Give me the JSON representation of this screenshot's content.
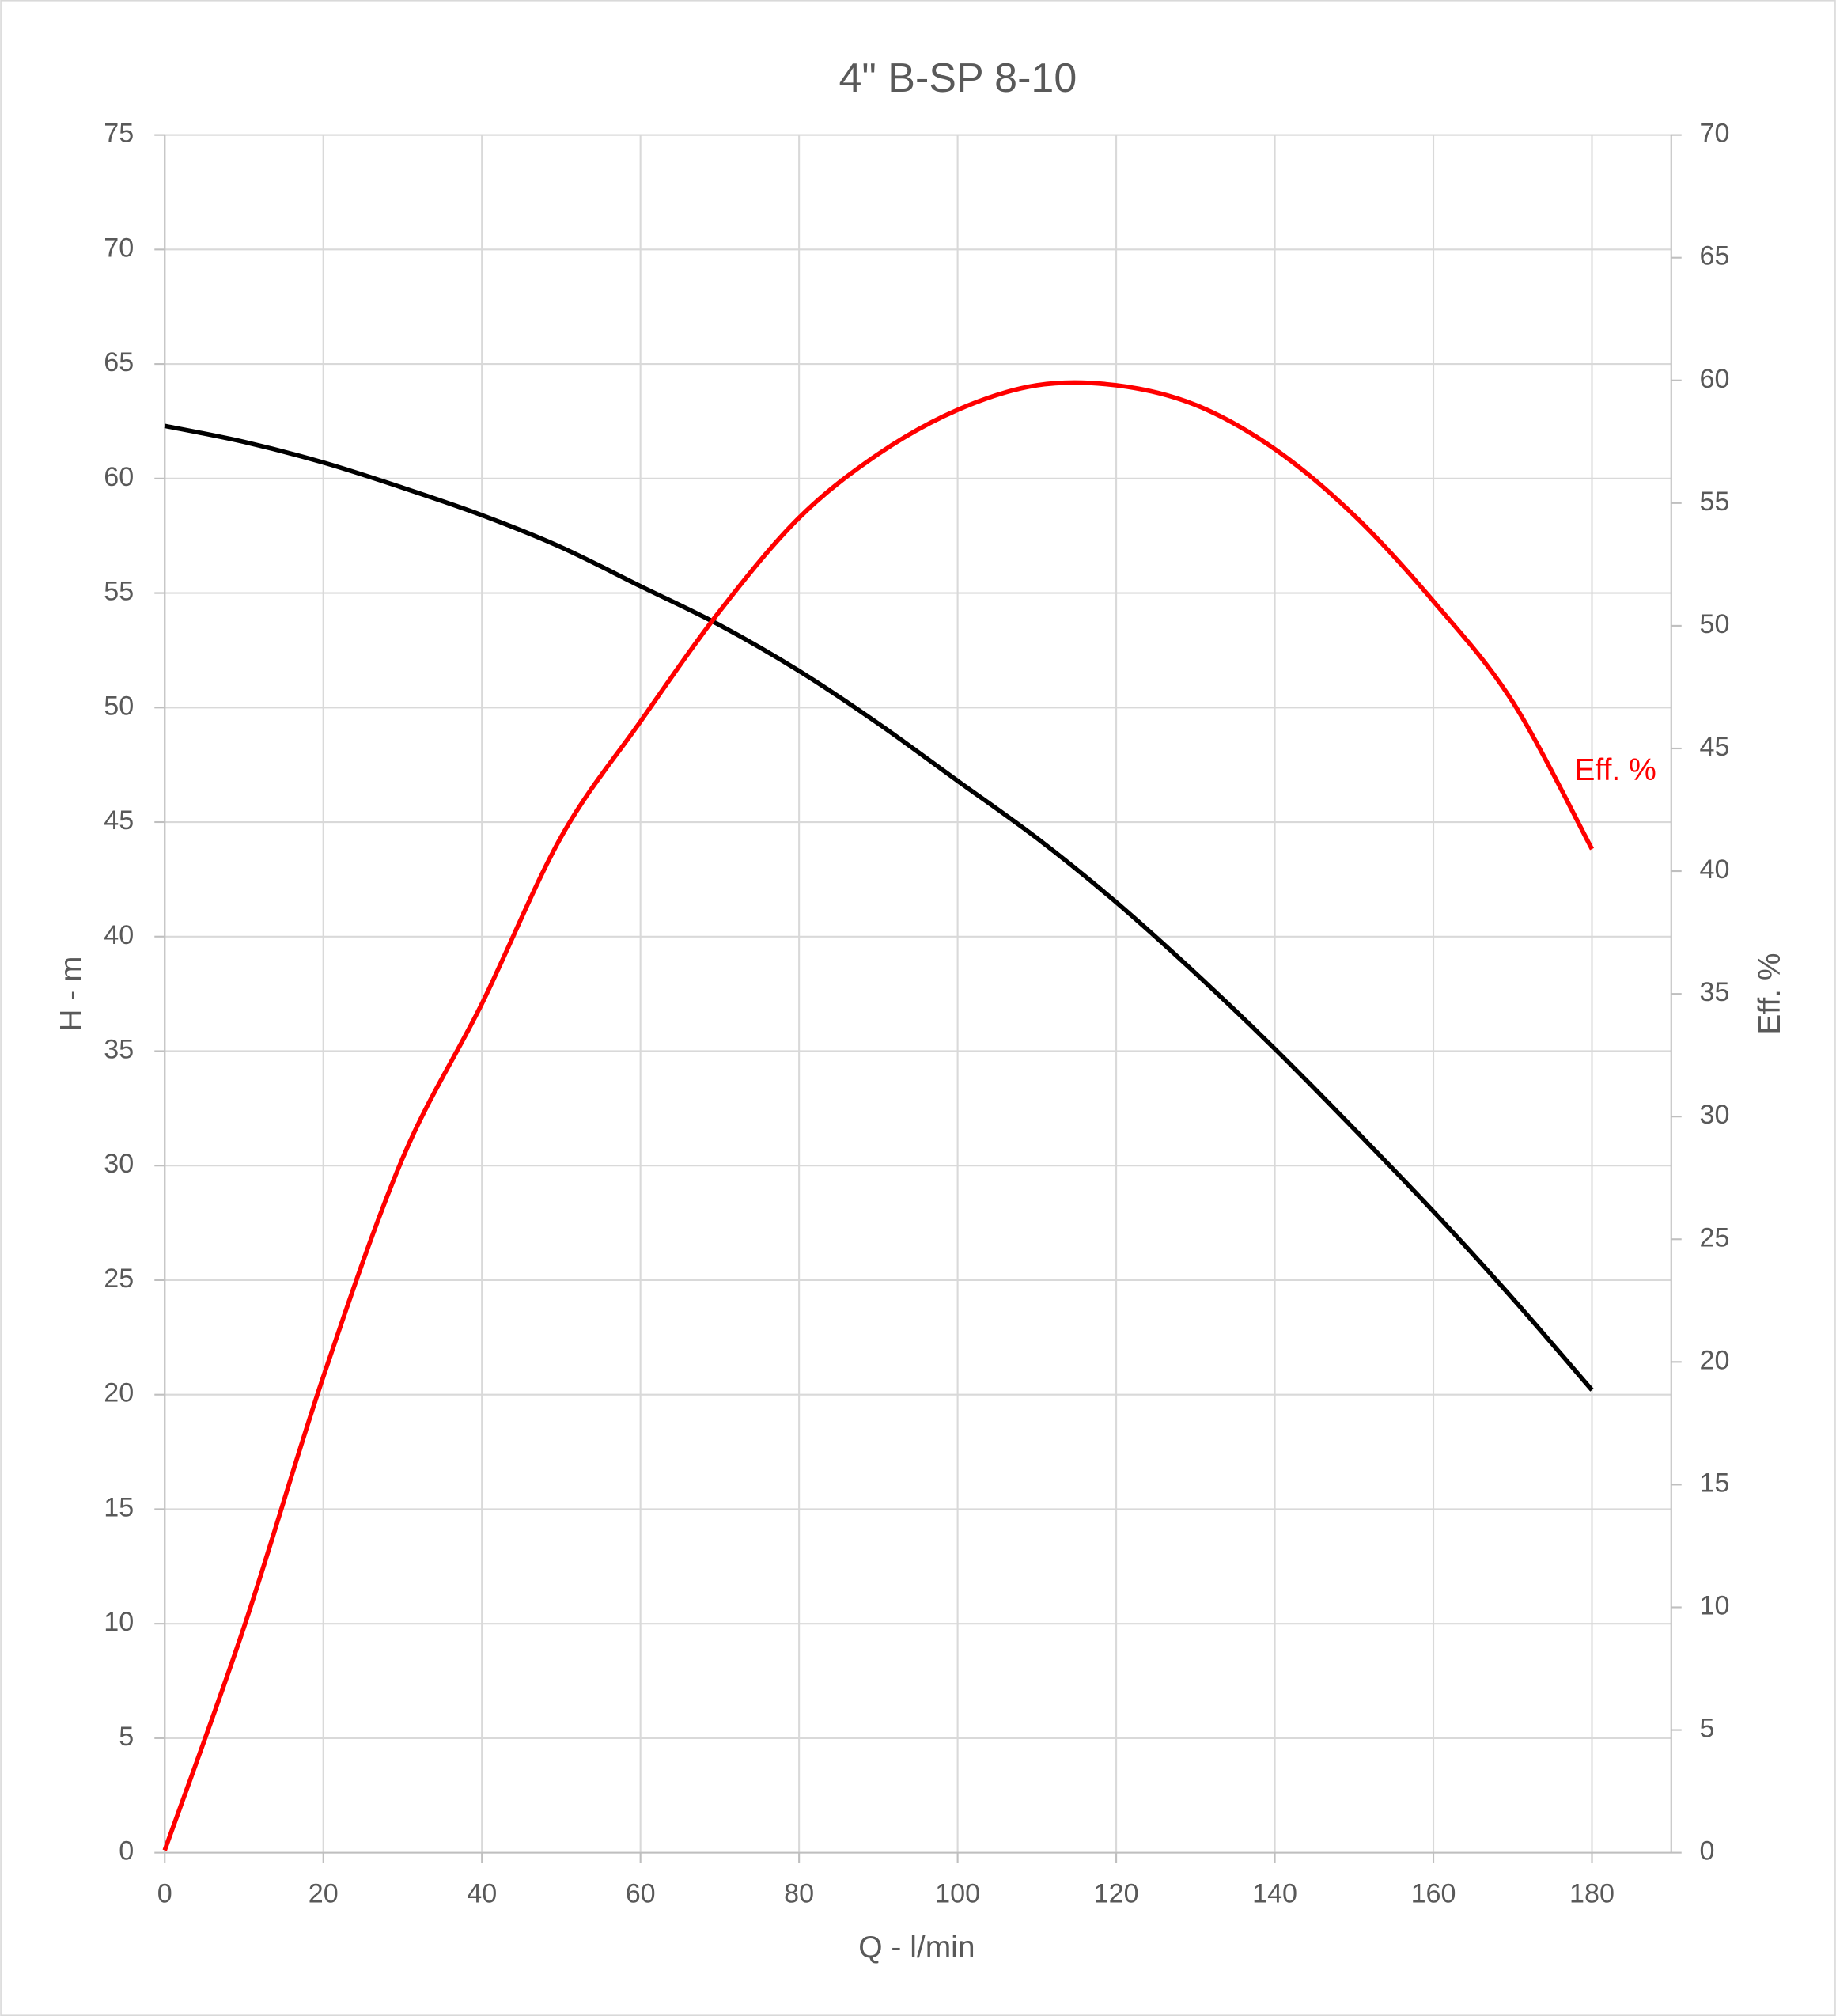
{
  "chart_data": {
    "type": "line",
    "title": "4\" B-SP 8-10",
    "x_label": "Q - l/min",
    "y_label": "H - m",
    "y2_label": "Eff. %",
    "x": [
      0,
      10,
      20,
      30,
      40,
      50,
      60,
      70,
      80,
      90,
      100,
      110,
      120,
      130,
      140,
      150,
      160,
      170,
      180
    ],
    "series": [
      {
        "color": "#000000",
        "values": [
          62.3,
          61.6,
          60.7,
          59.6,
          58.4,
          57.0,
          55.3,
          53.6,
          51.6,
          49.3,
          46.8,
          44.3,
          41.5,
          38.4,
          35.1,
          31.6,
          28.0,
          24.2,
          20.2
        ]
      },
      {
        "name": "Eff. %",
        "color": "#ff0000",
        "axis": "y2",
        "values": [
          0.1,
          9.2,
          19.4,
          28.3,
          34.6,
          41.4,
          46.1,
          50.6,
          54.4,
          57.0,
          58.8,
          59.8,
          59.8,
          59.0,
          57.2,
          54.5,
          51.0,
          46.9,
          40.9
        ]
      }
    ],
    "xlim": [
      0,
      190
    ],
    "xticks": [
      0,
      20,
      40,
      60,
      80,
      100,
      120,
      140,
      160,
      180
    ],
    "ylim": [
      0,
      75
    ],
    "yticks": [
      0,
      5,
      10,
      15,
      20,
      25,
      30,
      35,
      40,
      45,
      50,
      55,
      60,
      65,
      70,
      75
    ],
    "y2lim": [
      0,
      70
    ],
    "y2ticks": [
      0,
      5,
      10,
      15,
      20,
      25,
      30,
      35,
      40,
      45,
      50,
      55,
      60,
      65,
      70
    ],
    "grid": true
  }
}
